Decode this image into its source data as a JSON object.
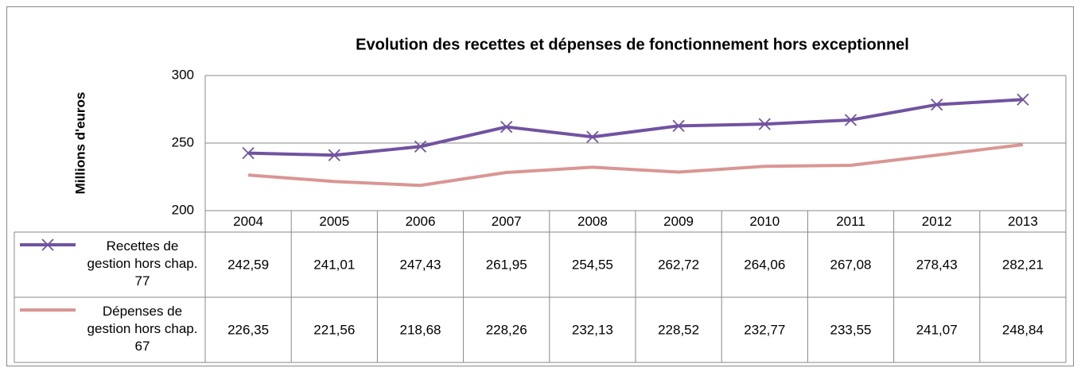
{
  "chart_data": {
    "type": "line",
    "title": "Evolution des recettes et dépenses de fonctionnement hors exceptionnel",
    "y_label": "Millions d'euros",
    "categories": [
      "2004",
      "2005",
      "2006",
      "2007",
      "2008",
      "2009",
      "2010",
      "2011",
      "2012",
      "2013"
    ],
    "series": [
      {
        "name": "Recettes de gestion hors chap. 77",
        "color": "#7153a0",
        "marker": "x",
        "values": [
          242.59,
          241.01,
          247.43,
          261.95,
          254.55,
          262.72,
          264.06,
          267.08,
          278.43,
          282.21
        ],
        "value_labels": [
          "242,59",
          "241,01",
          "247,43",
          "261,95",
          "254,55",
          "262,72",
          "264,06",
          "267,08",
          "278,43",
          "282,21"
        ]
      },
      {
        "name": "Dépenses de gestion hors chap. 67",
        "color": "#d99694",
        "marker": "none",
        "values": [
          226.35,
          221.56,
          218.68,
          228.26,
          232.13,
          228.52,
          232.77,
          233.55,
          241.07,
          248.84
        ],
        "value_labels": [
          "226,35",
          "221,56",
          "218,68",
          "228,26",
          "232,13",
          "228,52",
          "232,77",
          "233,55",
          "241,07",
          "248,84"
        ]
      }
    ],
    "ylim": [
      200,
      300
    ],
    "yticks": [
      200,
      250,
      300
    ],
    "grid": true,
    "data_table": true
  }
}
